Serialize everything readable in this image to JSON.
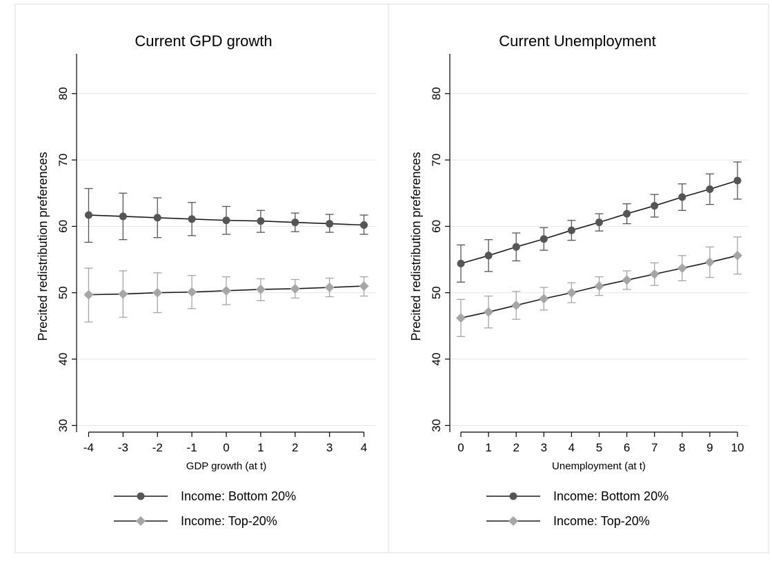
{
  "chart_data": [
    {
      "type": "line",
      "title": "Current GPD growth",
      "xlabel": "GDP growth (at t)",
      "ylabel": "Precited redistribution preferences",
      "x": [
        -4,
        -3,
        -2,
        -1,
        0,
        1,
        2,
        3,
        4
      ],
      "x_tick_labels": [
        "-4",
        "-3",
        "-2",
        "-1",
        "0",
        "1",
        "2",
        "3",
        "4"
      ],
      "xlim": [
        -4.35,
        4.35
      ],
      "ylim": [
        29,
        86
      ],
      "y_ticks": [
        30,
        40,
        50,
        60,
        70,
        80
      ],
      "grid": true,
      "legend_position": "bottom",
      "series": [
        {
          "name": "Income: Bottom 20%",
          "marker": "circle",
          "color": "#555555",
          "values": [
            61.7,
            61.5,
            61.3,
            61.1,
            60.9,
            60.8,
            60.6,
            60.4,
            60.2
          ],
          "ci_low": [
            57.6,
            58.0,
            58.3,
            58.6,
            58.8,
            59.1,
            59.2,
            59.1,
            58.8
          ],
          "ci_high": [
            65.7,
            65.0,
            64.3,
            63.6,
            63.0,
            62.4,
            62.0,
            61.8,
            61.7
          ]
        },
        {
          "name": "Income: Top-20%",
          "marker": "diamond",
          "color": "#a6a6a6",
          "values": [
            49.7,
            49.8,
            50.0,
            50.1,
            50.3,
            50.5,
            50.6,
            50.8,
            51.0
          ],
          "ci_low": [
            45.6,
            46.3,
            47.0,
            47.6,
            48.2,
            48.8,
            49.2,
            49.4,
            49.5
          ],
          "ci_high": [
            53.7,
            53.3,
            53.0,
            52.6,
            52.4,
            52.1,
            52.0,
            52.2,
            52.4
          ]
        }
      ]
    },
    {
      "type": "line",
      "title": "Current Unemployment",
      "xlabel": "Unemployment (at t)",
      "ylabel": "Precited redistribution preferences",
      "x": [
        0,
        1,
        2,
        3,
        4,
        5,
        6,
        7,
        8,
        9,
        10
      ],
      "x_tick_labels": [
        "0",
        "1",
        "2",
        "3",
        "4",
        "5",
        "6",
        "7",
        "8",
        "9",
        "10"
      ],
      "xlim": [
        -0.4,
        10.4
      ],
      "ylim": [
        29,
        86
      ],
      "y_ticks": [
        30,
        40,
        50,
        60,
        70,
        80
      ],
      "grid": true,
      "legend_position": "bottom",
      "series": [
        {
          "name": "Income: Bottom 20%",
          "marker": "circle",
          "color": "#555555",
          "values": [
            54.4,
            55.6,
            56.9,
            58.1,
            59.4,
            60.6,
            61.9,
            63.1,
            64.4,
            65.6,
            66.9
          ],
          "ci_low": [
            51.6,
            53.2,
            54.8,
            56.4,
            57.9,
            59.3,
            60.4,
            61.4,
            62.4,
            63.3,
            64.1
          ],
          "ci_high": [
            57.2,
            58.0,
            59.0,
            59.8,
            60.9,
            61.9,
            63.4,
            64.8,
            66.4,
            67.9,
            69.7
          ]
        },
        {
          "name": "Income: Top-20%",
          "marker": "diamond",
          "color": "#a6a6a6",
          "values": [
            46.2,
            47.1,
            48.1,
            49.1,
            50.0,
            51.0,
            51.9,
            52.8,
            53.7,
            54.6,
            55.6
          ],
          "ci_low": [
            43.4,
            44.7,
            46.0,
            47.4,
            48.5,
            49.6,
            50.5,
            51.1,
            51.8,
            52.3,
            52.8
          ],
          "ci_high": [
            49.0,
            49.5,
            50.2,
            50.8,
            51.5,
            52.4,
            53.3,
            54.5,
            55.6,
            56.9,
            58.4
          ]
        }
      ]
    }
  ]
}
